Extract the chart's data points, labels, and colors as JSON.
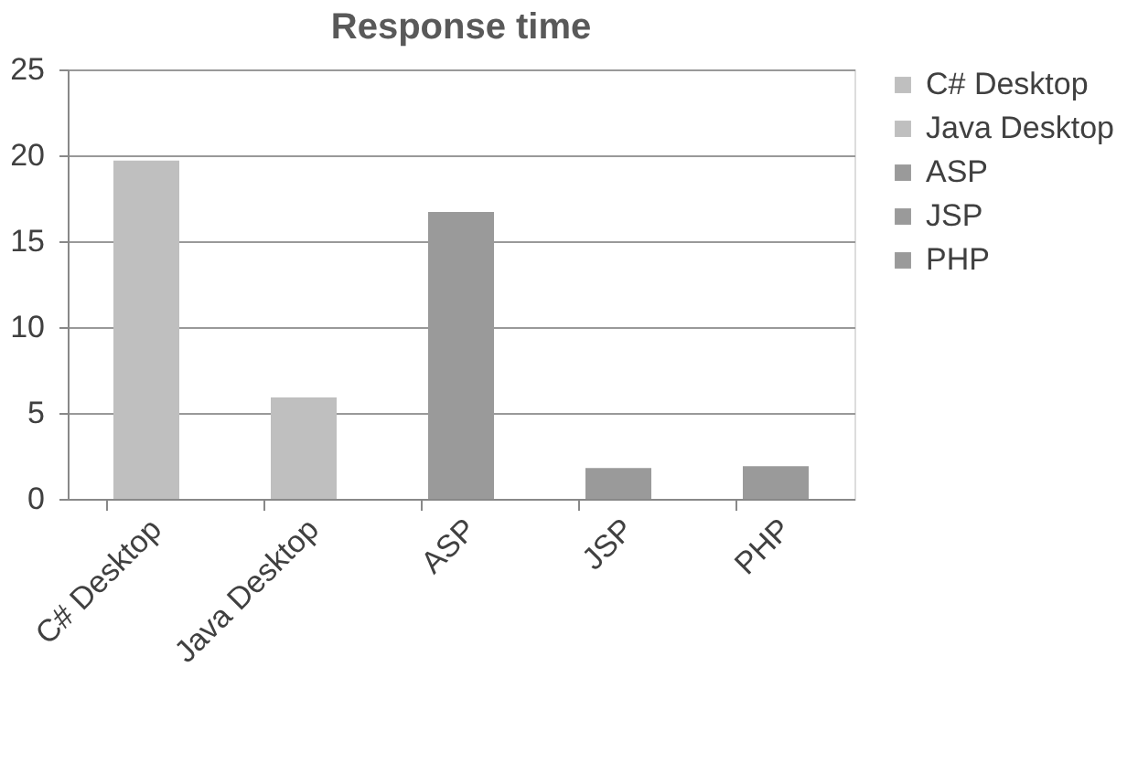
{
  "chart_data": {
    "type": "bar",
    "title": "Response time",
    "stacked": true,
    "categories": [
      "C# Desktop",
      "Java Desktop",
      "ASP",
      "JSP",
      "PHP"
    ],
    "series": [
      {
        "name": "C# Desktop",
        "color": "#bfbfbf",
        "values": [
          19.7,
          null,
          null,
          null,
          null
        ]
      },
      {
        "name": "Java Desktop",
        "color": "#bfbfbf",
        "values": [
          null,
          5.9,
          null,
          null,
          null
        ]
      },
      {
        "name": "ASP",
        "color": "#9a9a9a",
        "values": [
          null,
          null,
          16.7,
          null,
          null
        ]
      },
      {
        "name": "JSP",
        "color": "#9a9a9a",
        "values": [
          null,
          null,
          null,
          1.8,
          null
        ]
      },
      {
        "name": "PHP",
        "color": "#9a9a9a",
        "values": [
          null,
          null,
          null,
          null,
          1.9
        ]
      }
    ],
    "ylim": [
      0,
      25
    ],
    "yticks": [
      0,
      5,
      10,
      15,
      20,
      25
    ],
    "grid": "y",
    "legend": "right"
  }
}
